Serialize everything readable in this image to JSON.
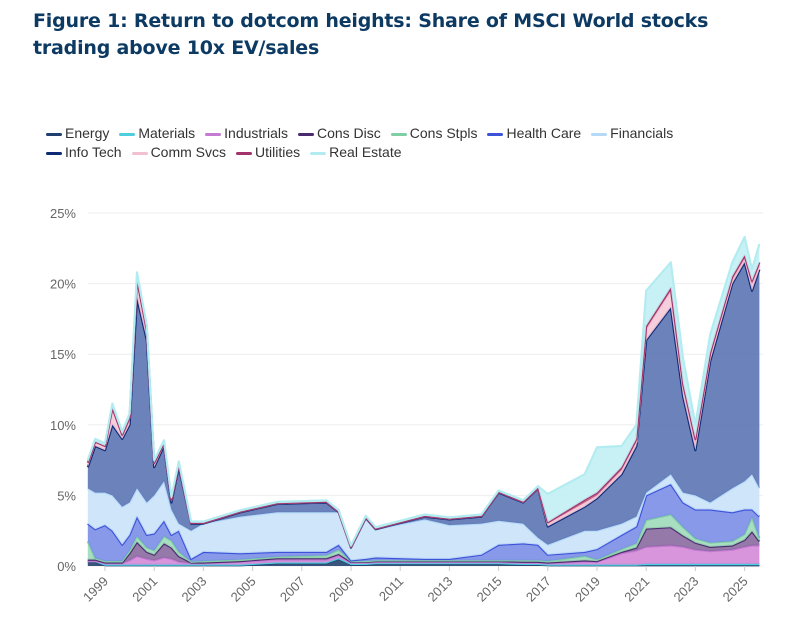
{
  "title": "Figure 1: Return to dotcom heights: Share of MSCI World stocks trading above 10x EV/sales",
  "chart_data": {
    "type": "area",
    "stacked": true,
    "title": "Figure 1: Return to dotcom heights: Share of MSCI World stocks trading above 10x EV/sales",
    "xlabel": "",
    "ylabel": "",
    "ylim": [
      0,
      25
    ],
    "yticks": [
      "0%",
      "5%",
      "10%",
      "15%",
      "20%",
      "25%"
    ],
    "xticks": [
      "1999",
      "2001",
      "2003",
      "2005",
      "2007",
      "2009",
      "2011",
      "2013",
      "2015",
      "2017",
      "2019",
      "2021",
      "2023",
      "2025"
    ],
    "grid": true,
    "legend": "top-left",
    "x": [
      1998.3,
      1998.6,
      1999,
      1999.3,
      1999.7,
      2000,
      2000.3,
      2000.7,
      2001,
      2001.4,
      2001.7,
      2002,
      2002.5,
      2003,
      2004.5,
      2006,
      2008,
      2008.5,
      2009,
      2009.6,
      2010,
      2012,
      2013,
      2014.3,
      2015,
      2016,
      2016.6,
      2017,
      2018.5,
      2019,
      2020,
      2020.6,
      2021,
      2022,
      2022.5,
      2023,
      2023.6,
      2024.5,
      2025,
      2025.3,
      2025.6
    ],
    "series": [
      {
        "name": "Energy",
        "color": "#1f3f6e",
        "fill": "#23426e",
        "values": [
          0.3,
          0.3,
          0.05,
          0.05,
          0.05,
          0.05,
          0.05,
          0.05,
          0.05,
          0.05,
          0.05,
          0.05,
          0.05,
          0.05,
          0.05,
          0.2,
          0.2,
          0.5,
          0.1,
          0.1,
          0.15,
          0.15,
          0.15,
          0.15,
          0.15,
          0.1,
          0.1,
          0.05,
          0.05,
          0.05,
          0.05,
          0.05,
          0.05,
          0.05,
          0.05,
          0.05,
          0.05,
          0.05,
          0.05,
          0.05,
          0.05
        ]
      },
      {
        "name": "Materials",
        "color": "#4dcfe0",
        "fill": "#6fd8e3",
        "values": [
          0.05,
          0.05,
          0.05,
          0.05,
          0.05,
          0.05,
          0.05,
          0.05,
          0.05,
          0.05,
          0.05,
          0.05,
          0.05,
          0.05,
          0.05,
          0.05,
          0.05,
          0.05,
          0.05,
          0.05,
          0.05,
          0.05,
          0.05,
          0.05,
          0.05,
          0.05,
          0.05,
          0.05,
          0.05,
          0.05,
          0.05,
          0.05,
          0.1,
          0.1,
          0.1,
          0.1,
          0.1,
          0.1,
          0.1,
          0.1,
          0.1
        ]
      },
      {
        "name": "Industrials",
        "color": "#c57ad4",
        "fill": "#d48ad8",
        "values": [
          0,
          0,
          0.1,
          0.1,
          0.1,
          0.3,
          0.6,
          0.4,
          0.3,
          0.5,
          0.4,
          0.2,
          0.1,
          0.1,
          0.2,
          0.2,
          0.2,
          0.2,
          0.1,
          0.1,
          0.1,
          0.1,
          0.1,
          0.1,
          0.1,
          0.1,
          0.1,
          0.1,
          0.2,
          0.2,
          0.8,
          1.0,
          1.2,
          1.3,
          1.2,
          1.0,
          0.9,
          1.0,
          1.2,
          1.3,
          1.3
        ]
      },
      {
        "name": "Cons Disc",
        "color": "#4a2a6e",
        "fill": "#8a6aa0",
        "values": [
          0.1,
          0.1,
          0.05,
          0.05,
          0.05,
          0.5,
          1.0,
          0.5,
          0.4,
          1.0,
          0.8,
          0.4,
          0.05,
          0.05,
          0.05,
          0.1,
          0.1,
          0.1,
          0.05,
          0.05,
          0.05,
          0.05,
          0.05,
          0.05,
          0.05,
          0.05,
          0.05,
          0.05,
          0.1,
          0.05,
          0.1,
          0.2,
          1.3,
          1.3,
          0.8,
          0.5,
          0.3,
          0.3,
          0.5,
          1.0,
          0.3
        ]
      },
      {
        "name": "Cons Stpls",
        "color": "#7fcfa5",
        "fill": "#9edcba",
        "values": [
          1.3,
          0.1,
          0.1,
          0.1,
          0.1,
          0.2,
          0.4,
          0.3,
          0.3,
          0.5,
          0.5,
          0.3,
          0.05,
          0.1,
          0.1,
          0.1,
          0.2,
          0.3,
          0.05,
          0.05,
          0.05,
          0.05,
          0.05,
          0.05,
          0.05,
          0.1,
          0.1,
          0.1,
          0.3,
          0.1,
          0.2,
          0.3,
          0.6,
          0.9,
          0.6,
          0.3,
          0.3,
          0.3,
          0.4,
          1.0,
          0.2
        ]
      },
      {
        "name": "Health Care",
        "color": "#3b52d9",
        "fill": "#7b8ee8",
        "values": [
          1.25,
          2.05,
          2.55,
          2.15,
          1.15,
          1.1,
          1.4,
          0.9,
          1.2,
          1.1,
          0.4,
          1.5,
          0.2,
          0.65,
          0.45,
          0.35,
          0.25,
          0.35,
          0.05,
          0.15,
          0.2,
          0.1,
          0.1,
          0.4,
          1.1,
          1.2,
          1.1,
          0.45,
          0.3,
          0.75,
          1.0,
          1.2,
          1.75,
          2.15,
          1.75,
          2.05,
          2.35,
          2.05,
          1.75,
          0.55,
          1.55
        ]
      },
      {
        "name": "Financials",
        "color": "#b5d8f7",
        "fill": "#c9e2fa",
        "values": [
          2.5,
          2.6,
          2.3,
          2.5,
          2.7,
          2.3,
          2.0,
          2.3,
          2.7,
          2.8,
          1.8,
          0.5,
          2.0,
          2.0,
          2.6,
          2.8,
          2.8,
          2.3,
          0.9,
          2.9,
          2.0,
          2.8,
          2.4,
          2.2,
          1.7,
          1.4,
          0.5,
          0.7,
          1.5,
          1.3,
          0.8,
          0.7,
          0.2,
          0.7,
          0.7,
          1.0,
          0.5,
          1.7,
          2.0,
          2.5,
          2.0
        ]
      },
      {
        "name": "Info Tech",
        "color": "#0d2b75",
        "fill": "#5b74b4",
        "values": [
          1.5,
          3.3,
          3.0,
          5.0,
          4.8,
          5.5,
          13.5,
          11.5,
          2.0,
          2.5,
          0.5,
          4.0,
          0.5,
          0,
          0.3,
          0.6,
          0.7,
          0,
          0,
          0,
          0,
          0.2,
          0.4,
          0.5,
          2.0,
          1.5,
          3.5,
          1.3,
          1.7,
          2.3,
          3.5,
          5.0,
          10.8,
          11.8,
          6.8,
          3.2,
          10.0,
          14.5,
          15.5,
          13.0,
          15.5
        ]
      },
      {
        "name": "Comm Svcs",
        "color": "#f3c0d2",
        "fill": "#f6c9d8",
        "values": [
          0.3,
          0.3,
          0.3,
          1.2,
          0.3,
          0.5,
          1.3,
          0.7,
          0.3,
          0.2,
          0.2,
          0.2,
          0.05,
          0.05,
          0.05,
          0.05,
          0.05,
          0.05,
          0.05,
          0.05,
          0.05,
          0.05,
          0.05,
          0.05,
          0.05,
          0.05,
          0.05,
          0.2,
          0.3,
          0.2,
          0.3,
          0.3,
          0.8,
          1.2,
          0.7,
          0.6,
          0.4,
          0.3,
          0.3,
          0.5,
          0.3
        ]
      },
      {
        "name": "Utilities",
        "color": "#a3336b",
        "fill": "#b8547f",
        "values": [
          0,
          0,
          0,
          0,
          0,
          0,
          0,
          0,
          0,
          0,
          0,
          0,
          0,
          0,
          0,
          0,
          0,
          0,
          0,
          0,
          0,
          0,
          0,
          0,
          0,
          0,
          0,
          0.1,
          0.2,
          0.2,
          0.2,
          0.2,
          0.2,
          0.2,
          0.2,
          0.2,
          0.2,
          0.2,
          0.2,
          0.2,
          0.2
        ]
      },
      {
        "name": "Real Estate",
        "color": "#b2ecf1",
        "fill": "#c2f0f4",
        "values": [
          0.2,
          0.2,
          0.2,
          0.3,
          0.2,
          0.3,
          0.5,
          0.3,
          0.2,
          0.2,
          0.2,
          0.2,
          0.1,
          0.1,
          0.1,
          0.1,
          0.1,
          0.1,
          0.1,
          0.1,
          0.1,
          0.1,
          0.1,
          0.1,
          0.1,
          0.1,
          0.1,
          2.0,
          1.8,
          3.2,
          1.5,
          1.0,
          2.5,
          1.8,
          1.8,
          1.0,
          1.3,
          1.0,
          1.3,
          0.8,
          1.3
        ]
      }
    ]
  }
}
